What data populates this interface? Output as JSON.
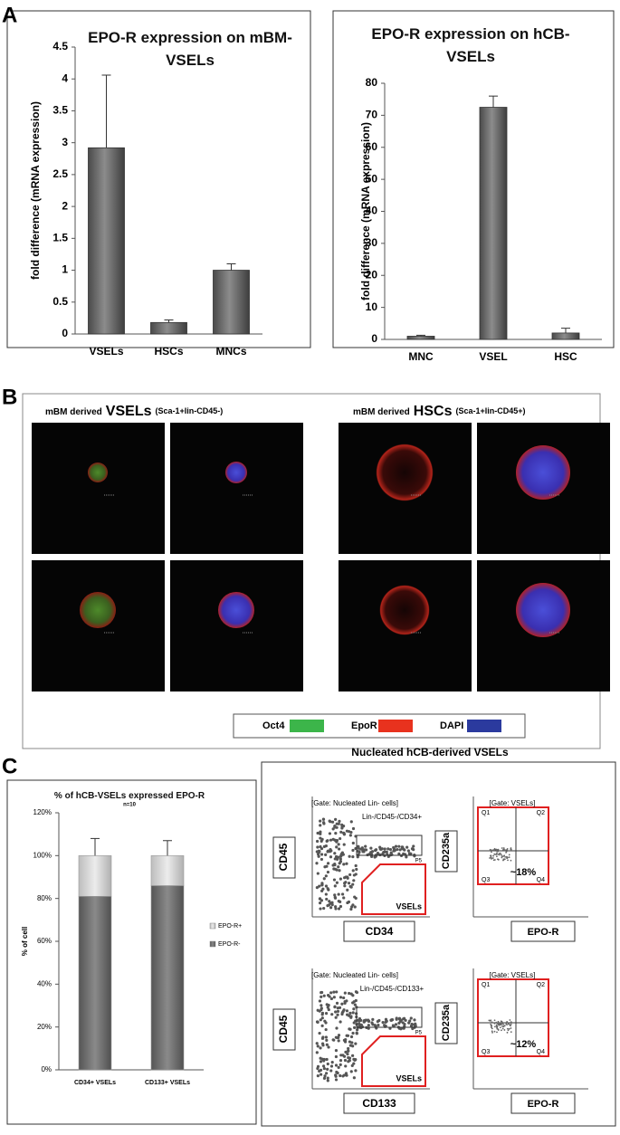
{
  "panel_labels": [
    "A",
    "B",
    "C"
  ],
  "chart_data": [
    {
      "type": "bar",
      "title": "EPO-R expression on mBM-VSELs",
      "y_label": "fold difference (mRNA expression)",
      "categories": [
        "VSELs",
        "HSCs",
        "MNCs"
      ],
      "values": [
        2.92,
        0.18,
        1.0
      ],
      "errors": [
        1.14,
        0.04,
        0.1
      ],
      "color": "#6b6b6b",
      "ylim": [
        0,
        4.5
      ],
      "yticks": [
        0,
        0.5,
        1,
        1.5,
        2,
        2.5,
        3,
        3.5,
        4,
        4.5
      ]
    },
    {
      "type": "bar",
      "title": "EPO-R expression on hCB-VSELs",
      "y_label": "fold difference (mRNA expression)",
      "categories": [
        "MNC",
        "VSEL",
        "HSC"
      ],
      "values": [
        1,
        72.5,
        2
      ],
      "errors": [
        0.3,
        3.5,
        1.5
      ],
      "color": "#6b6b6b",
      "ylim": [
        0,
        80
      ],
      "yticks": [
        0,
        10,
        20,
        30,
        40,
        50,
        60,
        70,
        80
      ]
    },
    {
      "type": "stacked-bar",
      "title": "% of hCB-VSELs expressed EPO-R",
      "subtitle": "n=10",
      "y_label": "% of cell",
      "categories": [
        "CD34+ VSELs",
        "CD133+ VSELs"
      ],
      "series": [
        {
          "name": "EPO-R-",
          "color": "#707070",
          "values": [
            81,
            86
          ]
        },
        {
          "name": "EPO-R+",
          "color": "#c8c8c8",
          "values": [
            19,
            14
          ],
          "errors": [
            8,
            7
          ]
        }
      ],
      "ylim": [
        0,
        120
      ],
      "yticks": [
        {
          "value": 0,
          "label": "0%"
        },
        {
          "value": 20,
          "label": "20%"
        },
        {
          "value": 40,
          "label": "40%"
        },
        {
          "value": 60,
          "label": "60%"
        },
        {
          "value": 80,
          "label": "80%"
        },
        {
          "value": 100,
          "label": "100%"
        },
        {
          "value": 120,
          "label": "120%"
        }
      ]
    }
  ],
  "microscopy": {
    "groups": [
      {
        "prefix": "mBM derived",
        "name": "VSELs",
        "markers": "(Sca-1+lin-CD45-)"
      },
      {
        "prefix": "mBM derived",
        "name": "HSCs",
        "markers": "(Sca-1+lin-CD45+)"
      }
    ],
    "legend": [
      {
        "name": "Oct4",
        "color": "#3cb54a"
      },
      {
        "name": "EpoR",
        "color": "#e8321e"
      },
      {
        "name": "DAPI",
        "color": "#2b3a9e"
      }
    ]
  },
  "flow": {
    "title": "Nucleated hCB-derived VSELs",
    "rows": [
      {
        "gate_left": "[Gate: Nucleated Lin- cells]",
        "population": "Lin-/CD45-/CD34+",
        "gate_label": "P5",
        "region_label": "VSELs",
        "y_label": "CD45",
        "x_label": "CD34",
        "gate_right": "[Gate: VSELs]",
        "quadrants": [
          "Q1",
          "Q2",
          "Q3",
          "Q4"
        ],
        "percent": "~18%",
        "y2_label": "CD235a",
        "x2_label": "EPO-R"
      },
      {
        "gate_left": "[Gate: Nucleated Lin- cells]",
        "population": "Lin-/CD45-/CD133+",
        "gate_label": "P5",
        "region_label": "VSELs",
        "y_label": "CD45",
        "x_label": "CD133",
        "gate_right": "[Gate: VSELs]",
        "quadrants": [
          "Q1",
          "Q2",
          "Q3",
          "Q4"
        ],
        "percent": "~12%",
        "y2_label": "CD235a",
        "x2_label": "EPO-R"
      }
    ]
  }
}
